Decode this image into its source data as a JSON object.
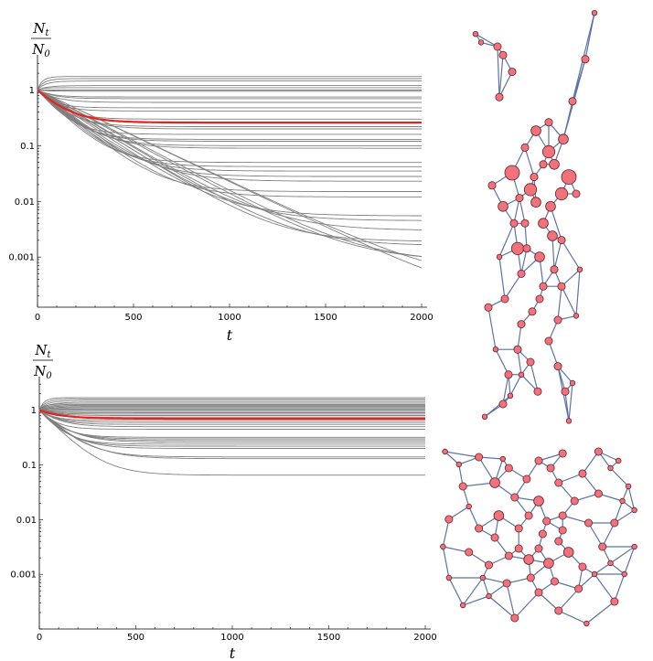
{
  "chart_data": [
    {
      "type": "line",
      "ylabel": {
        "num_main": "N",
        "num_sub": "t",
        "den_main": "N",
        "den_sub": "0"
      },
      "xlabel": "t",
      "xlim": [
        0,
        2000
      ],
      "ylim_log10": [
        -3.9,
        0.5
      ],
      "log_y": true,
      "xticks": [
        0,
        500,
        1000,
        1500,
        2000
      ],
      "xtick_labels": [
        "0",
        "500",
        "1000",
        "1500",
        "2000"
      ],
      "yticks": [
        1,
        0.1,
        0.01,
        0.001
      ],
      "ytick_labels": [
        "1",
        "0.1",
        "0.01",
        "0.001"
      ],
      "line_color": "#808080",
      "highlight_color": "#e8231c",
      "highlight": {
        "name": "",
        "final": 0.26
      },
      "finals": [
        1.75,
        1.6,
        1.45,
        1.2,
        1.1,
        1.0,
        0.95,
        0.75,
        0.7,
        0.6,
        0.48,
        0.42,
        0.3,
        0.22,
        0.2,
        0.16,
        0.13,
        0.12,
        0.1,
        0.09,
        0.05,
        0.042,
        0.035,
        0.028,
        0.023,
        0.015,
        0.012,
        0.0055,
        0.0045,
        0.003,
        0.0019,
        0.0016,
        0.00085,
        0.0008,
        0.00033,
        0.00013
      ],
      "graph": {
        "nodes": [
          [
            0.8,
            0.02
          ],
          [
            0.75,
            0.13
          ],
          [
            0.68,
            0.23
          ],
          [
            0.63,
            0.32
          ],
          [
            0.55,
            0.35
          ],
          [
            0.48,
            0.3
          ],
          [
            0.55,
            0.28
          ],
          [
            0.58,
            0.38
          ],
          [
            0.66,
            0.41
          ],
          [
            0.62,
            0.45
          ],
          [
            0.52,
            0.52
          ],
          [
            0.62,
            0.56
          ],
          [
            0.7,
            0.45
          ],
          [
            0.45,
            0.44
          ],
          [
            0.35,
            0.4
          ],
          [
            0.3,
            0.48
          ],
          [
            0.38,
            0.58
          ],
          [
            0.42,
            0.52
          ],
          [
            0.5,
            0.6
          ],
          [
            0.4,
            0.64
          ],
          [
            0.35,
            0.16
          ],
          [
            0.3,
            0.12
          ],
          [
            0.18,
            0.09
          ],
          [
            0.28,
            0.22
          ],
          [
            0.33,
            0.88
          ],
          [
            0.45,
            0.85
          ],
          [
            0.55,
            0.8
          ],
          [
            0.3,
            0.95
          ],
          [
            0.2,
            0.98
          ],
          [
            0.6,
            0.75
          ],
          [
            0.7,
            0.74
          ],
          [
            0.72,
            0.63
          ],
          [
            0.5,
            0.7
          ],
          [
            0.62,
            0.67
          ],
          [
            0.4,
            0.76
          ],
          [
            0.26,
            0.82
          ],
          [
            0.64,
            0.92
          ],
          [
            0.66,
            0.99
          ],
          [
            0.15,
            0.07
          ],
          [
            0.52,
            0.67
          ],
          [
            0.48,
            0.47
          ],
          [
            0.42,
            0.34
          ],
          [
            0.27,
            0.1
          ],
          [
            0.43,
            0.58
          ],
          [
            0.56,
            0.48
          ],
          [
            0.36,
            0.52
          ],
          [
            0.24,
            0.43
          ],
          [
            0.58,
            0.63
          ],
          [
            0.46,
            0.73
          ],
          [
            0.38,
            0.82
          ],
          [
            0.6,
            0.86
          ],
          [
            0.68,
            0.9
          ],
          [
            0.22,
            0.72
          ],
          [
            0.31,
            0.7
          ],
          [
            0.57,
            0.55
          ],
          [
            0.47,
            0.41
          ],
          [
            0.39,
            0.46
          ],
          [
            0.52,
            0.38
          ],
          [
            0.4,
            0.88
          ],
          [
            0.34,
            0.93
          ],
          [
            0.49,
            0.92
          ],
          [
            0.28,
            0.6
          ]
        ],
        "node_sizes": [
          1,
          2,
          2,
          3,
          4,
          3,
          2,
          3,
          5,
          4,
          3,
          2,
          2,
          4,
          5,
          3,
          4,
          2,
          3,
          2,
          2,
          2,
          1,
          2,
          2,
          2,
          2,
          2,
          1,
          2,
          1,
          1,
          2,
          2,
          2,
          1,
          2,
          1,
          1,
          2,
          3,
          2,
          2,
          2,
          3,
          2,
          2,
          2,
          2,
          2,
          2,
          1,
          2,
          2,
          3,
          2,
          2,
          2,
          1,
          1,
          2,
          1
        ]
      }
    },
    {
      "type": "line",
      "ylabel": {
        "num_main": "N",
        "num_sub": "t",
        "den_main": "N",
        "den_sub": "0"
      },
      "xlabel": "t",
      "xlim": [
        0,
        2000
      ],
      "ylim_log10": [
        -4.0,
        0.48
      ],
      "log_y": true,
      "xticks": [
        0,
        500,
        1000,
        1500,
        2000
      ],
      "xtick_labels": [
        "0",
        "500",
        "1000",
        "1500",
        "2000"
      ],
      "yticks": [
        1,
        0.1,
        0.01,
        0.001
      ],
      "ytick_labels": [
        "1",
        "0.1",
        "0.01",
        "0.001"
      ],
      "line_color": "#808080",
      "highlight_color": "#e8231c",
      "highlight": {
        "name": "",
        "final": 0.7
      },
      "finals": [
        1.7,
        1.6,
        1.5,
        1.4,
        1.3,
        1.25,
        1.2,
        1.15,
        1.1,
        1.05,
        1.0,
        0.95,
        0.9,
        0.85,
        0.8,
        0.75,
        0.65,
        0.6,
        0.55,
        0.5,
        0.45,
        0.32,
        0.3,
        0.28,
        0.26,
        0.24,
        0.22,
        0.2,
        0.14,
        0.13,
        0.065
      ],
      "graph": {
        "nodes": [
          [
            0.03,
            0.03
          ],
          [
            0.2,
            0.06
          ],
          [
            0.35,
            0.12
          ],
          [
            0.5,
            0.08
          ],
          [
            0.62,
            0.04
          ],
          [
            0.8,
            0.03
          ],
          [
            0.9,
            0.08
          ],
          [
            0.95,
            0.22
          ],
          [
            0.98,
            0.35
          ],
          [
            0.98,
            0.55
          ],
          [
            0.93,
            0.7
          ],
          [
            0.88,
            0.85
          ],
          [
            0.74,
            0.97
          ],
          [
            0.6,
            0.9
          ],
          [
            0.5,
            0.8
          ],
          [
            0.38,
            0.94
          ],
          [
            0.25,
            0.82
          ],
          [
            0.12,
            0.87
          ],
          [
            0.05,
            0.72
          ],
          [
            0.02,
            0.55
          ],
          [
            0.05,
            0.4
          ],
          [
            0.12,
            0.22
          ],
          [
            0.28,
            0.2
          ],
          [
            0.38,
            0.28
          ],
          [
            0.5,
            0.3
          ],
          [
            0.6,
            0.2
          ],
          [
            0.72,
            0.15
          ],
          [
            0.8,
            0.26
          ],
          [
            0.75,
            0.42
          ],
          [
            0.62,
            0.38
          ],
          [
            0.52,
            0.48
          ],
          [
            0.4,
            0.45
          ],
          [
            0.3,
            0.38
          ],
          [
            0.2,
            0.45
          ],
          [
            0.15,
            0.58
          ],
          [
            0.25,
            0.65
          ],
          [
            0.35,
            0.6
          ],
          [
            0.45,
            0.62
          ],
          [
            0.55,
            0.64
          ],
          [
            0.65,
            0.58
          ],
          [
            0.72,
            0.66
          ],
          [
            0.82,
            0.55
          ],
          [
            0.88,
            0.42
          ],
          [
            0.7,
            0.78
          ],
          [
            0.58,
            0.74
          ],
          [
            0.46,
            0.72
          ],
          [
            0.34,
            0.75
          ],
          [
            0.22,
            0.72
          ],
          [
            0.4,
            0.56
          ],
          [
            0.5,
            0.56
          ],
          [
            0.6,
            0.52
          ],
          [
            0.28,
            0.5
          ],
          [
            0.44,
            0.18
          ],
          [
            0.56,
            0.12
          ],
          [
            0.68,
            0.3
          ],
          [
            0.86,
            0.12
          ],
          [
            0.92,
            0.3
          ],
          [
            0.1,
            0.1
          ],
          [
            0.15,
            0.33
          ],
          [
            0.32,
            0.07
          ],
          [
            0.45,
            0.38
          ],
          [
            0.62,
            0.46
          ],
          [
            0.78,
            0.7
          ],
          [
            0.86,
            0.64
          ],
          [
            0.54,
            0.41
          ]
        ],
        "node_sizes": [
          1,
          2,
          2,
          2,
          2,
          2,
          1,
          1,
          1,
          1,
          1,
          2,
          1,
          2,
          2,
          2,
          1,
          1,
          1,
          1,
          2,
          2,
          3,
          2,
          3,
          2,
          2,
          2,
          2,
          2,
          2,
          2,
          3,
          2,
          2,
          2,
          2,
          3,
          3,
          3,
          2,
          2,
          2,
          2,
          2,
          2,
          2,
          1,
          2,
          2,
          2,
          2,
          2,
          2,
          2,
          1,
          1,
          1,
          1,
          1,
          2,
          2,
          1,
          1,
          2
        ]
      }
    }
  ]
}
